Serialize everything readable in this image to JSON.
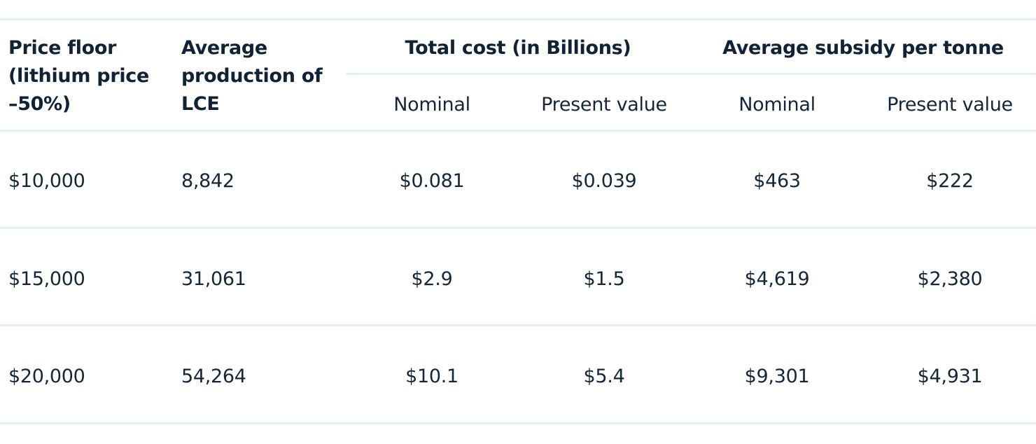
{
  "table": {
    "headers": {
      "price_floor": [
        "Price floor",
        "(lithium price",
        "–50%)"
      ],
      "avg_production": [
        "Average",
        "production of",
        "LCE"
      ],
      "total_cost_group": "Total cost (in Billions)",
      "avg_subsidy_group": "Average subsidy per tonne",
      "sub_nominal_1": "Nominal",
      "sub_present_1": "Present value",
      "sub_nominal_2": "Nominal",
      "sub_present_2": "Present value"
    },
    "rows": [
      {
        "price_floor": "$10,000",
        "avg_production": "8,842",
        "total_nominal": "$0.081",
        "total_present": "$0.039",
        "subsidy_nominal": "$463",
        "subsidy_present": "$222"
      },
      {
        "price_floor": "$15,000",
        "avg_production": "31,061",
        "total_nominal": "$2.9",
        "total_present": "$1.5",
        "subsidy_nominal": "$4,619",
        "subsidy_present": "$2,380"
      },
      {
        "price_floor": "$20,000",
        "avg_production": "54,264",
        "total_nominal": "$10.1",
        "total_present": "$5.4",
        "subsidy_nominal": "$9,301",
        "subsidy_present": "$4,931"
      }
    ]
  },
  "colors": {
    "text": "#14263a",
    "rule": "#e3f0f9"
  }
}
